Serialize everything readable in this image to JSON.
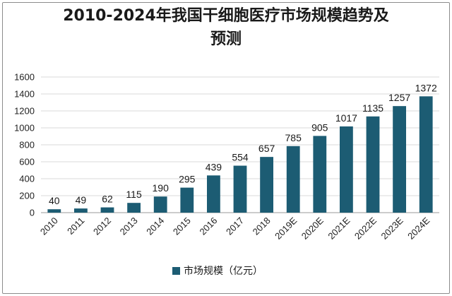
{
  "chart_data": {
    "type": "bar",
    "title_line1": "2010-2024年我国干细胞医疗市场规模趋势及",
    "title_line2": "预测",
    "categories": [
      "2010",
      "2011",
      "2012",
      "2013",
      "2014",
      "2015",
      "2016",
      "2017",
      "2018",
      "2019E",
      "2020E",
      "2021E",
      "2022E",
      "2023E",
      "2024E"
    ],
    "series": [
      {
        "name": "市场规模（亿元）",
        "values": [
          40,
          49,
          62,
          115,
          190,
          295,
          439,
          554,
          657,
          785,
          905,
          1017,
          1135,
          1257,
          1372
        ]
      }
    ],
    "yticks": [
      0,
      200,
      400,
      600,
      800,
      1000,
      1200,
      1400,
      1600
    ],
    "ylim": [
      0,
      1600
    ],
    "grid": true,
    "legend": "bottom",
    "bar_color": "#1c5c73"
  }
}
